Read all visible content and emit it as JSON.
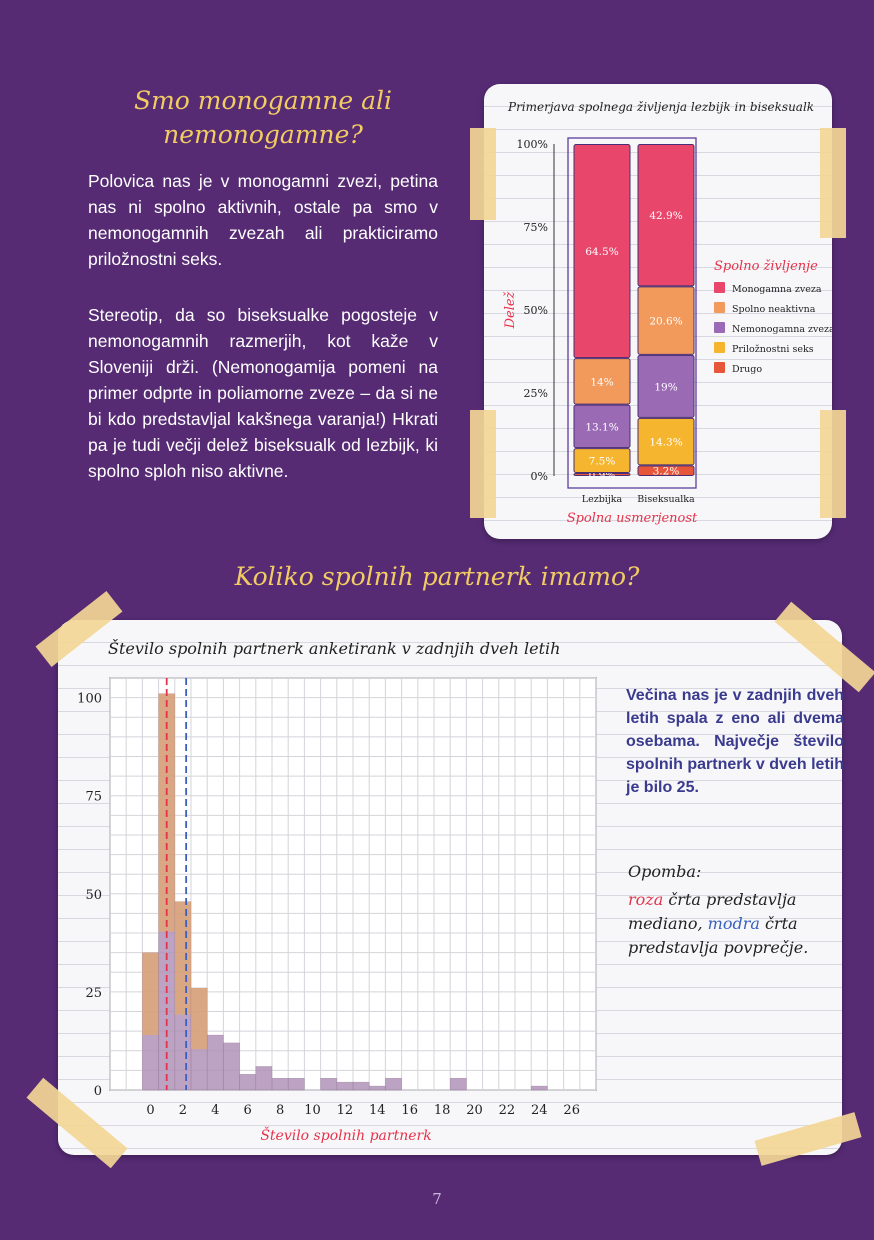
{
  "section1": {
    "title": "Smo monogamne ali nemonogamne?",
    "paragraph1": "Polovica nas je v monogamni zvezi, petina nas ni spolno aktivnih, ostale pa smo v nemonogamnih zvezah ali prakticiramo priložnostni seks.",
    "paragraph2": "Stereotip, da so biseksualke pogosteje v nemonogamnih razmerjih, kot kaže v Sloveniji drži. (Nemonogamija pomeni na primer odprte in poliamorne zveze – da si ne bi kdo predstavljal kakšnega varanja!) Hkrati pa je tudi večji delež biseksualk od lezbijk, ki spolno sploh niso aktivne."
  },
  "section2": {
    "title": "Koliko spolnih partnerk imamo?",
    "note_body": "Večina nas je v zadnjih dveh letih spala z eno ali dvema osebama. Največje število spolnih partnerk v dveh letih je bilo 25.",
    "note_label": "Opomba:",
    "note_pink": "roza",
    "note_mid": " črta predstavlja mediano, ",
    "note_blue": "modra",
    "note_end": " črta predstavlja povprečje."
  },
  "page_number": "7",
  "colors": {
    "background": "#562b74",
    "title": "#f2cc63",
    "note_text": "#3a3a8e",
    "monogamna": "#e8476b",
    "neaktivna": "#f19a5c",
    "nemonogamna": "#9b6ab5",
    "priloznostni": "#f6b52e",
    "drugo": "#e8563a",
    "median_line": "#e5334b",
    "mean_line": "#3a5fbf"
  },
  "chart_data": [
    {
      "type": "bar",
      "stacked": true,
      "title": "Primerjava spolnega življenja lezbijk in biseksualk",
      "xlabel": "Spolna usmerjenost",
      "ylabel": "Delež",
      "ylim": [
        0,
        100
      ],
      "yticks": [
        "0%",
        "25%",
        "50%",
        "75%",
        "100%"
      ],
      "categories": [
        "Lezbijka",
        "Biseksualka"
      ],
      "legend_title": "Spolno življenje",
      "legend_position": "right",
      "series": [
        {
          "name": "Drugo",
          "color": "#e8563a",
          "values": [
            0.9,
            3.2
          ],
          "labels": [
            "0.9%",
            "3.2%"
          ]
        },
        {
          "name": "Priložnostni seks",
          "color": "#f6b52e",
          "values": [
            7.5,
            14.3
          ],
          "labels": [
            "7.5%",
            "14.3%"
          ]
        },
        {
          "name": "Nemonogamna zveza",
          "color": "#9b6ab5",
          "values": [
            13.1,
            19.0
          ],
          "labels": [
            "13.1%",
            "19%"
          ]
        },
        {
          "name": "Spolno neaktivna",
          "color": "#f19a5c",
          "values": [
            14.0,
            20.6
          ],
          "labels": [
            "14%",
            "20.6%"
          ]
        },
        {
          "name": "Monogamna zveza",
          "color": "#e8476b",
          "values": [
            64.5,
            42.9
          ],
          "labels": [
            "64.5%",
            "42.9%"
          ]
        }
      ],
      "legend_order": [
        "Monogamna zveza",
        "Spolno neaktivna",
        "Nemonogamna zveza",
        "Priložnostni seks",
        "Drugo"
      ]
    },
    {
      "type": "histogram",
      "title": "Število spolnih partnerk anketirank v zadnjih dveh letih",
      "xlabel": "Število spolnih partnerk",
      "ylabel": "",
      "xlim": [
        -2,
        28
      ],
      "ylim": [
        0,
        105
      ],
      "xticks": [
        0,
        2,
        4,
        6,
        8,
        10,
        12,
        14,
        16,
        18,
        20,
        22,
        24,
        26
      ],
      "yticks": [
        0,
        25,
        50,
        75,
        100
      ],
      "bin_width": 1,
      "bins_start": [
        0,
        1,
        2,
        3,
        4,
        5,
        6,
        7,
        8,
        9,
        10,
        11,
        12,
        13,
        14,
        15,
        16,
        17,
        18,
        19,
        20,
        21,
        22,
        23,
        24,
        25
      ],
      "counts": [
        35,
        101,
        48,
        26,
        14,
        12,
        4,
        6,
        3,
        3,
        0,
        3,
        2,
        2,
        1,
        3,
        0,
        0,
        0,
        3,
        0,
        0,
        0,
        0,
        1,
        0
      ],
      "median": 1,
      "mean": 2.7,
      "gridlines": true
    }
  ]
}
